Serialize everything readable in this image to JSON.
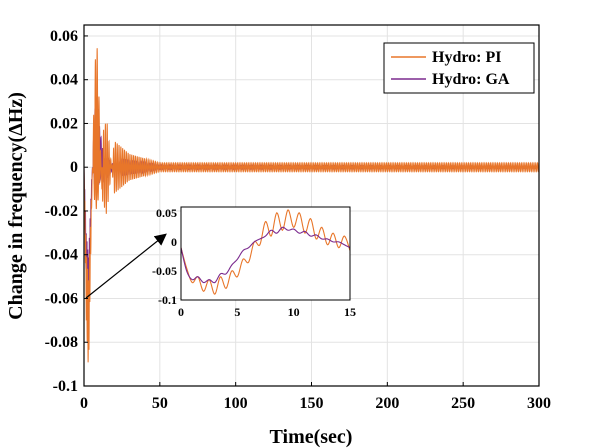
{
  "chart_data": {
    "type": "line",
    "title": "",
    "xlabel": "Time(sec)",
    "ylabel": "Change in frequency(ΔHz)",
    "xlim": [
      0,
      300
    ],
    "ylim": [
      -0.1,
      0.065
    ],
    "xticks": [
      "0",
      "50",
      "100",
      "150",
      "200",
      "250",
      "300"
    ],
    "yticks": [
      "0.06",
      "0.04",
      "0.02",
      "0",
      "-0.02",
      "-0.04",
      "-0.06",
      "-0.08",
      "-0.1"
    ],
    "grid": true,
    "legend_position": "top-right",
    "series": [
      {
        "name": "Hydro: PI",
        "color": "#e8762a",
        "peak_points": [
          [
            0,
            0
          ],
          [
            1.5,
            -0.07
          ],
          [
            3,
            -0.094
          ],
          [
            5,
            -0.02
          ],
          [
            7,
            0.045
          ],
          [
            8.5,
            0.058
          ],
          [
            10,
            0.03
          ],
          [
            12,
            -0.015
          ],
          [
            15,
            -0.022
          ],
          [
            20,
            0.012
          ],
          [
            30,
            0.006
          ],
          [
            50,
            0.002
          ],
          [
            100,
            0.002
          ],
          [
            300,
            0.002
          ]
        ],
        "oscillation_period": 1.2
      },
      {
        "name": "Hydro: GA",
        "color": "#7b2a8e",
        "peak_points": [
          [
            0,
            0
          ],
          [
            1.5,
            -0.055
          ],
          [
            3,
            -0.075
          ],
          [
            5,
            -0.01
          ],
          [
            7,
            0.026
          ],
          [
            8.5,
            0.033
          ],
          [
            10,
            0.02
          ],
          [
            15,
            -0.005
          ],
          [
            25,
            0.004
          ],
          [
            50,
            0.001
          ],
          [
            300,
            0.0005
          ]
        ],
        "oscillation_period": 1.0
      }
    ],
    "inset": {
      "xlim": [
        0,
        15
      ],
      "ylim": [
        -0.1,
        0.06
      ],
      "xticks": [
        "0",
        "5",
        "10",
        "15"
      ],
      "yticks": [
        "0.05",
        "0",
        "-0.05",
        "-0.1"
      ],
      "series": [
        {
          "name": "Hydro: PI",
          "points": [
            [
              0,
              -0.01
            ],
            [
              0.5,
              -0.045
            ],
            [
              1,
              -0.07
            ],
            [
              1.5,
              -0.06
            ],
            [
              2,
              -0.085
            ],
            [
              2.5,
              -0.065
            ],
            [
              3,
              -0.09
            ],
            [
              3.5,
              -0.06
            ],
            [
              4,
              -0.08
            ],
            [
              4.5,
              -0.05
            ],
            [
              5,
              -0.06
            ],
            [
              5.5,
              -0.03
            ],
            [
              6,
              -0.035
            ],
            [
              6.5,
              0.0
            ],
            [
              7,
              -0.005
            ],
            [
              7.5,
              0.035
            ],
            [
              8,
              0.01
            ],
            [
              8.5,
              0.05
            ],
            [
              9,
              0.02
            ],
            [
              9.5,
              0.055
            ],
            [
              10,
              0.025
            ],
            [
              10.5,
              0.05
            ],
            [
              11,
              0.015
            ],
            [
              11.5,
              0.04
            ],
            [
              12,
              0.005
            ],
            [
              12.5,
              0.025
            ],
            [
              13,
              -0.005
            ],
            [
              13.5,
              0.015
            ],
            [
              14,
              -0.01
            ],
            [
              14.5,
              0.01
            ],
            [
              15,
              -0.015
            ]
          ]
        },
        {
          "name": "Hydro: GA",
          "points": [
            [
              0,
              -0.01
            ],
            [
              0.5,
              -0.05
            ],
            [
              1,
              -0.065
            ],
            [
              1.5,
              -0.06
            ],
            [
              2,
              -0.07
            ],
            [
              2.5,
              -0.065
            ],
            [
              3,
              -0.07
            ],
            [
              3.5,
              -0.055
            ],
            [
              4,
              -0.055
            ],
            [
              4.5,
              -0.04
            ],
            [
              5,
              -0.03
            ],
            [
              5.5,
              -0.015
            ],
            [
              6,
              -0.01
            ],
            [
              6.5,
              0.0
            ],
            [
              7,
              0.005
            ],
            [
              7.5,
              0.01
            ],
            [
              8,
              0.02
            ],
            [
              8.5,
              0.015
            ],
            [
              9,
              0.025
            ],
            [
              9.5,
              0.02
            ],
            [
              10,
              0.022
            ],
            [
              10.5,
              0.015
            ],
            [
              11,
              0.018
            ],
            [
              11.5,
              0.01
            ],
            [
              12,
              0.012
            ],
            [
              12.5,
              0.005
            ],
            [
              13,
              0.005
            ],
            [
              13.5,
              0.0
            ],
            [
              14,
              0.0
            ],
            [
              14.5,
              -0.005
            ],
            [
              15,
              -0.01
            ]
          ]
        }
      ]
    }
  }
}
